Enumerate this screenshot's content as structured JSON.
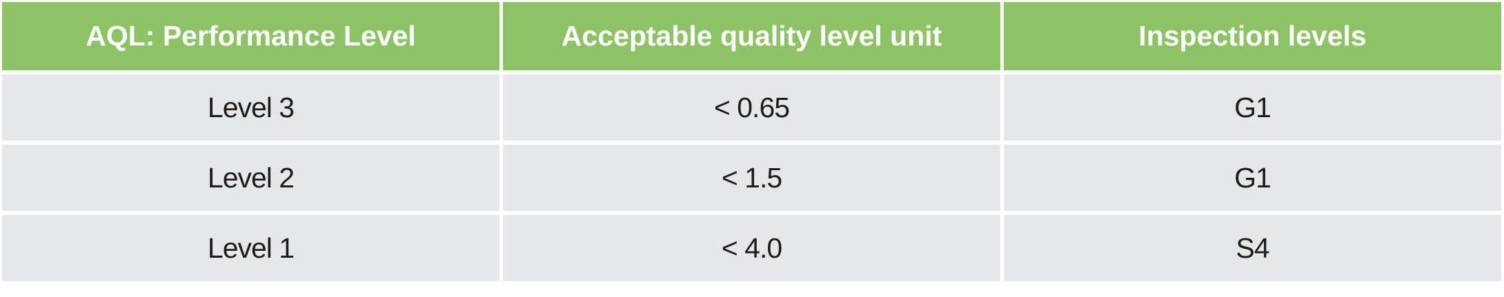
{
  "table": {
    "columns": [
      "AQL: Performance Level",
      "Acceptable quality level unit",
      "Inspection levels"
    ],
    "rows": [
      [
        "Level 3",
        "< 0.65",
        "G1"
      ],
      [
        "Level 2",
        "< 1.5",
        "G1"
      ],
      [
        "Level 1",
        "< 4.0",
        "S4"
      ]
    ]
  },
  "colors": {
    "header_bg": "#8DC265",
    "header_text": "#FFFFFF",
    "row_bg": "#E6E7E8",
    "row_text": "#1D1D1B",
    "gutter": "#FFFFFF"
  }
}
